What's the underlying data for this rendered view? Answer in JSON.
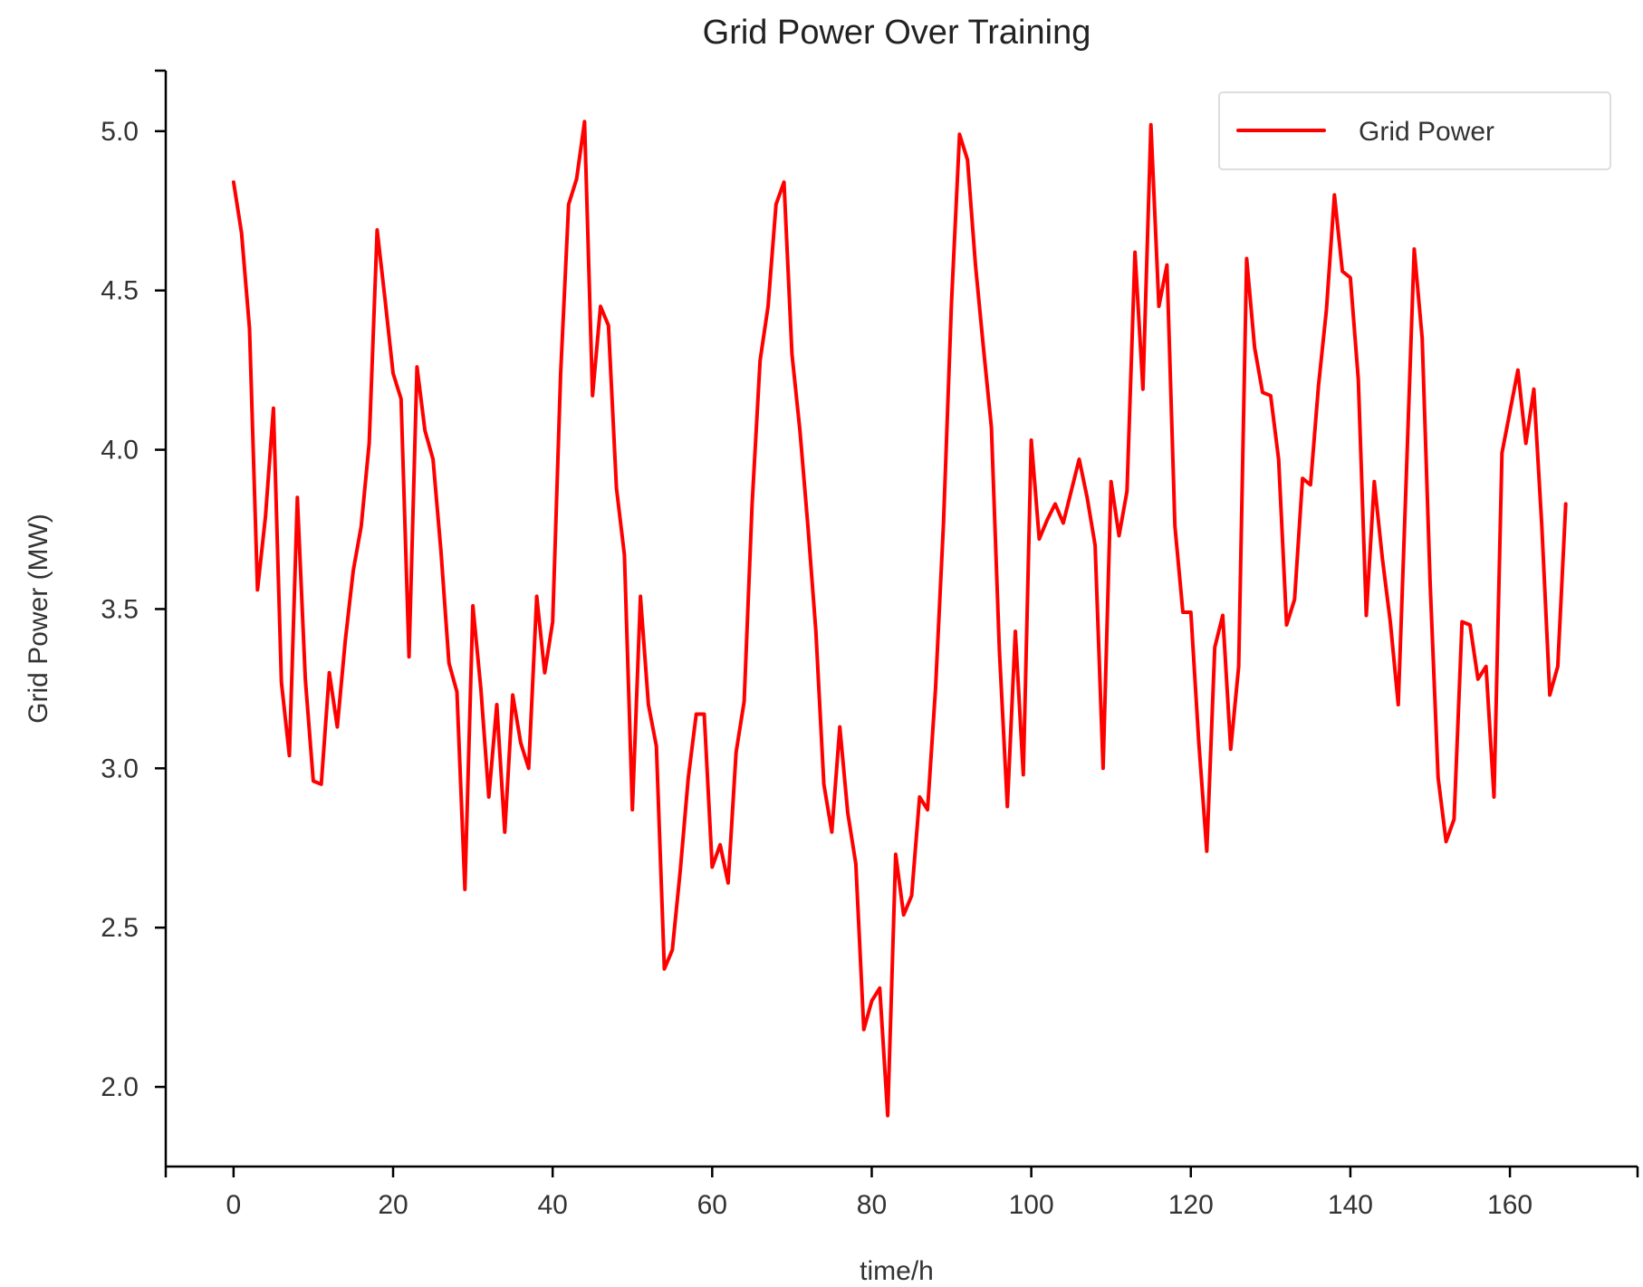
{
  "chart_data": {
    "type": "line",
    "title": "Grid Power Over Training",
    "xlabel": "time/h",
    "ylabel": "Grid Power (MW)",
    "xlim": [
      -8.5,
      176
    ],
    "ylim": [
      1.75,
      5.19
    ],
    "x_ticks": [
      0,
      20,
      40,
      60,
      80,
      100,
      120,
      140,
      160
    ],
    "x_tick_labels": [
      "0",
      "20",
      "40",
      "60",
      "80",
      "100",
      "120",
      "140",
      "160"
    ],
    "y_ticks": [
      2.0,
      2.5,
      3.0,
      3.5,
      4.0,
      4.5,
      5.0
    ],
    "y_tick_labels": [
      "2.0",
      "2.5",
      "3.0",
      "3.5",
      "4.0",
      "4.5",
      "5.0"
    ],
    "grid": false,
    "legend": {
      "position": "top-right"
    },
    "series": [
      {
        "name": "Grid Power",
        "color": "#ff0000",
        "x": [
          0,
          1,
          2,
          3,
          4,
          5,
          6,
          7,
          8,
          9,
          10,
          11,
          12,
          13,
          14,
          15,
          16,
          17,
          18,
          19,
          20,
          21,
          22,
          23,
          24,
          25,
          26,
          27,
          28,
          29,
          30,
          31,
          32,
          33,
          34,
          35,
          36,
          37,
          38,
          39,
          40,
          41,
          42,
          43,
          44,
          45,
          46,
          47,
          48,
          49,
          50,
          51,
          52,
          53,
          54,
          55,
          56,
          57,
          58,
          59,
          60,
          61,
          62,
          63,
          64,
          65,
          66,
          67,
          68,
          69,
          70,
          71,
          72,
          73,
          74,
          75,
          76,
          77,
          78,
          79,
          80,
          81,
          82,
          83,
          84,
          85,
          86,
          87,
          88,
          89,
          90,
          91,
          92,
          93,
          94,
          95,
          96,
          97,
          98,
          99,
          100,
          101,
          102,
          103,
          104,
          105,
          106,
          107,
          108,
          109,
          110,
          111,
          112,
          113,
          114,
          115,
          116,
          117,
          118,
          119,
          120,
          121,
          122,
          123,
          124,
          125,
          126,
          127,
          128,
          129,
          130,
          131,
          132,
          133,
          134,
          135,
          136,
          137,
          138,
          139,
          140,
          141,
          142,
          143,
          144,
          145,
          146,
          147,
          148,
          149,
          150,
          151,
          152,
          153,
          154,
          155,
          156,
          157,
          158,
          159,
          160,
          161,
          162,
          163,
          164,
          165,
          166,
          167
        ],
        "values": [
          4.84,
          4.68,
          4.38,
          3.56,
          3.79,
          4.13,
          3.27,
          3.04,
          3.85,
          3.28,
          2.96,
          2.95,
          3.3,
          3.13,
          3.4,
          3.62,
          3.76,
          4.02,
          4.69,
          4.47,
          4.24,
          4.16,
          3.35,
          4.26,
          4.06,
          3.97,
          3.68,
          3.33,
          3.24,
          2.62,
          3.51,
          3.25,
          2.91,
          3.2,
          2.8,
          3.23,
          3.08,
          3.0,
          3.54,
          3.3,
          3.46,
          4.24,
          4.77,
          4.85,
          5.03,
          4.17,
          4.45,
          4.39,
          3.88,
          3.67,
          2.87,
          3.54,
          3.2,
          3.07,
          2.37,
          2.43,
          2.68,
          2.97,
          3.17,
          3.17,
          2.69,
          2.76,
          2.64,
          3.05,
          3.21,
          3.83,
          4.28,
          4.45,
          4.77,
          4.84,
          4.3,
          4.06,
          3.76,
          3.43,
          2.95,
          2.8,
          3.13,
          2.86,
          2.7,
          2.18,
          2.27,
          2.31,
          1.91,
          2.73,
          2.54,
          2.6,
          2.91,
          2.87,
          3.25,
          3.77,
          4.46,
          4.99,
          4.91,
          4.58,
          4.32,
          4.07,
          3.37,
          2.88,
          3.43,
          2.98,
          4.03,
          3.72,
          3.78,
          3.83,
          3.77,
          3.87,
          3.97,
          3.85,
          3.7,
          3.0,
          3.9,
          3.73,
          3.87,
          4.62,
          4.19,
          5.02,
          4.45,
          4.58,
          3.76,
          3.49,
          3.49,
          3.08,
          2.74,
          3.38,
          3.48,
          3.06,
          3.32,
          4.6,
          4.32,
          4.18,
          4.17,
          3.97,
          3.45,
          3.53,
          3.91,
          3.89,
          4.2,
          4.44,
          4.8,
          4.56,
          4.54,
          4.22,
          3.48,
          3.9,
          3.66,
          3.46,
          3.2,
          3.91,
          4.63,
          4.35,
          3.58,
          2.97,
          2.77,
          2.84,
          3.46,
          3.45,
          3.28,
          3.32,
          2.91,
          3.99,
          4.12,
          4.25,
          4.02,
          4.19,
          3.76,
          3.23,
          3.32,
          3.83
        ]
      }
    ]
  }
}
